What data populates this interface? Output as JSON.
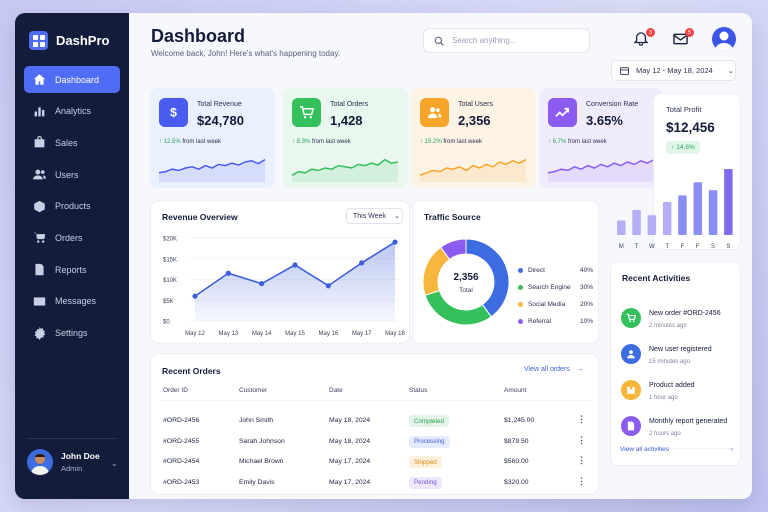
{
  "brand": {
    "name": "DashPro"
  },
  "sidebar": {
    "items": [
      {
        "label": "Dashboard",
        "icon": "home-icon",
        "active": true
      },
      {
        "label": "Analytics",
        "icon": "bar-chart-icon"
      },
      {
        "label": "Sales",
        "icon": "shopping-bag-icon"
      },
      {
        "label": "Users",
        "icon": "users-icon"
      },
      {
        "label": "Products",
        "icon": "box-icon"
      },
      {
        "label": "Orders",
        "icon": "cart-icon"
      },
      {
        "label": "Reports",
        "icon": "document-icon"
      },
      {
        "label": "Messages",
        "icon": "mail-icon"
      },
      {
        "label": "Settings",
        "icon": "gear-icon"
      }
    ],
    "user": {
      "name": "John Doe",
      "role": "Admin"
    }
  },
  "header": {
    "title": "Dashboard",
    "subtitle": "Welcome back, John! Here's what's happening today.",
    "search_placeholder": "Search anything...",
    "notifications_count": "3",
    "messages_count": "5",
    "date_range": "May 12 - May 18, 2024"
  },
  "stats": [
    {
      "label": "Total Revenue",
      "value": "$24,780",
      "change": "↑ 12.5%",
      "change_suffix": " from last week",
      "icon": "dollar-icon",
      "color": "#4a5cf0",
      "bg": "#eaf0fd"
    },
    {
      "label": "Total Orders",
      "value": "1,428",
      "change": "↑ 8.3%",
      "change_suffix": " from last week",
      "icon": "cart-icon",
      "color": "#34c05a",
      "bg": "#e9f7ee"
    },
    {
      "label": "Total Users",
      "value": "2,356",
      "change": "↑ 15.2%",
      "change_suffix": " from last week",
      "icon": "users-icon",
      "color": "#f6a52a",
      "bg": "#fdf3e4"
    },
    {
      "label": "Conversion Rate",
      "value": "3.65%",
      "change": "↑ 6.7%",
      "change_suffix": " from last week",
      "icon": "trend-icon",
      "color": "#8a5cf0",
      "bg": "#f1ecfd"
    }
  ],
  "profit": {
    "label": "Total Profit",
    "value": "$12,456",
    "change": "↑ 14.6%",
    "days": [
      "M",
      "T",
      "W",
      "T",
      "F",
      "F",
      "S",
      "S"
    ],
    "bars": [
      0.22,
      0.38,
      0.3,
      0.5,
      0.6,
      0.8,
      0.68,
      1.0
    ]
  },
  "revenue_overview": {
    "title": "Revenue Overview",
    "range_select": "This Week",
    "chart_data": {
      "type": "area",
      "x": [
        "May 12",
        "May 13",
        "May 14",
        "May 15",
        "May 16",
        "May 17",
        "May 18"
      ],
      "y_ticks": [
        "$20K",
        "$15K",
        "$10K",
        "$5K",
        "$0"
      ],
      "ylim": [
        0,
        20000
      ],
      "values": [
        6000,
        11500,
        9000,
        13500,
        8500,
        14000,
        19000
      ],
      "color": "#3d5fd9"
    }
  },
  "traffic": {
    "title": "Traffic Source",
    "total": "2,356",
    "total_label": "Total",
    "chart_data": {
      "type": "pie",
      "labels": [
        "Direct",
        "Search Engine",
        "Social Media",
        "Referral"
      ],
      "values": [
        40,
        30,
        20,
        10
      ],
      "colors": [
        "#3d6be0",
        "#34c05a",
        "#f6b73c",
        "#8a5cf0"
      ],
      "percent_labels": [
        "40%",
        "30%",
        "20%",
        "10%"
      ]
    }
  },
  "orders": {
    "title": "Recent Orders",
    "view_all": "View all orders",
    "columns": [
      "Order ID",
      "Customer",
      "Date",
      "Status",
      "Amount"
    ],
    "rows": [
      {
        "id": "#ORD-2456",
        "customer": "John Smith",
        "date": "May 18, 2024",
        "status": "Completed",
        "amount": "$1,245.00",
        "status_bg": "#e2f5e8",
        "status_fg": "#23a052"
      },
      {
        "id": "#ORD-2455",
        "customer": "Sarah Johnson",
        "date": "May 18, 2024",
        "status": "Processing",
        "amount": "$879.50",
        "status_bg": "#e4ebfd",
        "status_fg": "#3d5fd9"
      },
      {
        "id": "#ORD-2454",
        "customer": "Michael Brown",
        "date": "May 17, 2024",
        "status": "Shipped",
        "amount": "$560.00",
        "status_bg": "#fdf0dc",
        "status_fg": "#d98b12"
      },
      {
        "id": "#ORD-2453",
        "customer": "Emily Davis",
        "date": "May 17, 2024",
        "status": "Pending",
        "amount": "$320.00",
        "status_bg": "#efe8fc",
        "status_fg": "#7a4fe0"
      }
    ]
  },
  "activities": {
    "title": "Recent Activities",
    "view_all": "View all activities",
    "items": [
      {
        "title": "New order #ORD-2456",
        "time": "2 minutes ago",
        "color": "#34c05a",
        "icon": "cart-icon"
      },
      {
        "title": "New user registered",
        "time": "15 minutes ago",
        "color": "#3d6be0",
        "icon": "user-icon"
      },
      {
        "title": "Product added",
        "time": "1 hour ago",
        "color": "#f6b73c",
        "icon": "box-icon"
      },
      {
        "title": "Monthly report generated",
        "time": "2 hours ago",
        "color": "#8a5cf0",
        "icon": "document-icon"
      }
    ]
  }
}
